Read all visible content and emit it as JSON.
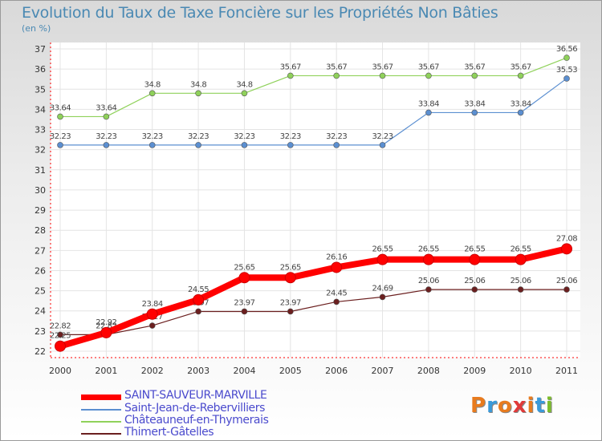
{
  "title": "Evolution du Taux de Taxe Foncière sur les Propriétés Non Bâties",
  "unit": "(en %)",
  "logo": {
    "text": "Proxiti",
    "colors": [
      "#e87b1e",
      "#3a9ad9",
      "#e87b1e",
      "#e03a3a",
      "#e87b1e",
      "#3a9ad9",
      "#7cbd2a"
    ]
  },
  "chart_data": {
    "type": "line",
    "title": "Evolution du Taux de Taxe Foncière sur les Propriétés Non Bâties",
    "ylabel": "(en %)",
    "xlabel": "",
    "categories": [
      "2000",
      "2001",
      "2002",
      "2003",
      "2004",
      "2005",
      "2006",
      "2007",
      "2008",
      "2009",
      "2010",
      "2011"
    ],
    "ylim": [
      22,
      37
    ],
    "yticks": [
      "22",
      "23",
      "24",
      "25",
      "26",
      "27",
      "28",
      "29",
      "30",
      "31",
      "32",
      "33",
      "34",
      "35",
      "36",
      "37"
    ],
    "series": [
      {
        "name": "Thimert-Gâtelles",
        "color": "#6b1f1f",
        "values": [
          22.82,
          22.82,
          23.27,
          23.97,
          23.97,
          23.97,
          24.45,
          24.69,
          25.06,
          25.06,
          25.06,
          25.06
        ],
        "labels": [
          "22.82",
          "22.82",
          "23.27",
          "23.97",
          "23.97",
          "23.97",
          "24.45",
          "24.69",
          "25.06",
          "25.06",
          "25.06",
          "25.06"
        ]
      },
      {
        "name": "Saint-Jean-de-Rebervilliers",
        "color": "#5b8fd1",
        "values": [
          32.23,
          32.23,
          32.23,
          32.23,
          32.23,
          32.23,
          32.23,
          32.23,
          33.84,
          33.84,
          33.84,
          35.53
        ],
        "labels": [
          "32.23",
          "32.23",
          "32.23",
          "32.23",
          "32.23",
          "32.23",
          "32.23",
          "32.23",
          "33.84",
          "33.84",
          "33.84",
          "35.53"
        ]
      },
      {
        "name": "Châteauneuf-en-Thymerais",
        "color": "#8fd15a",
        "values": [
          33.64,
          33.64,
          34.8,
          34.8,
          34.8,
          35.67,
          35.67,
          35.67,
          35.67,
          35.67,
          35.67,
          36.56
        ],
        "labels": [
          "33.64",
          "33.64",
          "34.8",
          "34.8",
          "34.8",
          "35.67",
          "35.67",
          "35.67",
          "35.67",
          "35.67",
          "35.67",
          "36.56"
        ]
      },
      {
        "name": "SAINT-SAUVEUR-MARVILLE",
        "color": "#ff0000",
        "values": [
          22.25,
          22.92,
          23.84,
          24.55,
          25.65,
          25.65,
          26.16,
          26.55,
          26.55,
          26.55,
          26.55,
          27.08
        ],
        "labels": [
          "22.25",
          "22.92",
          "23.84",
          "24.55",
          "25.65",
          "25.65",
          "26.16",
          "26.55",
          "26.55",
          "26.55",
          "26.55",
          "27.08"
        ]
      }
    ],
    "legend": [
      {
        "name": "SAINT-SAUVEUR-MARVILLE",
        "color": "#ff0000"
      },
      {
        "name": "Saint-Jean-de-Rebervilliers",
        "color": "#5b8fd1"
      },
      {
        "name": "Châteauneuf-en-Thymerais",
        "color": "#8fd15a"
      },
      {
        "name": "Thimert-Gâtelles",
        "color": "#6b1f1f"
      }
    ],
    "legend_position": "bottom-left"
  }
}
